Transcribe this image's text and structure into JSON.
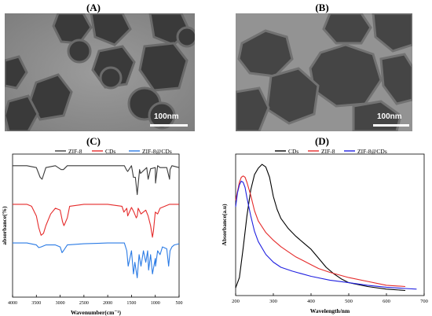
{
  "figure": {
    "panels": [
      {
        "letter": "(A)",
        "scale_label": "100nm"
      },
      {
        "letter": "(B)",
        "scale_label": "100nm"
      },
      {
        "letter": "(C)"
      },
      {
        "letter": "(D)"
      }
    ]
  },
  "chart_data": [
    {
      "type": "line",
      "panel": "(C)",
      "xlabel": "Wavenumber(cm⁻¹)",
      "ylabel": "absorbance(%)",
      "xlim": [
        4000,
        500
      ],
      "x_reversed": true,
      "x_ticks": [
        4000,
        3500,
        3000,
        2500,
        2000,
        1500,
        1000,
        500
      ],
      "y_ticks": false,
      "legend_position": "top",
      "series": [
        {
          "name": "ZIF-8",
          "color": "#3a3a3a",
          "offset": 2.0,
          "x": [
            4000,
            3700,
            3500,
            3420,
            3380,
            3300,
            3100,
            2980,
            2930,
            2850,
            2500,
            2000,
            1650,
            1600,
            1580,
            1500,
            1460,
            1420,
            1380,
            1330,
            1310,
            1180,
            1150,
            1100,
            1000,
            995,
            950,
            900,
            760,
            700,
            690,
            650,
            500
          ],
          "y": [
            0,
            0,
            -0.05,
            -0.3,
            -0.35,
            -0.05,
            0,
            -0.1,
            -0.1,
            0,
            0,
            0,
            0,
            -0.12,
            -0.15,
            0,
            -0.3,
            -0.3,
            -0.75,
            -0.1,
            -0.2,
            -0.05,
            -0.35,
            -0.08,
            -0.05,
            -0.45,
            0,
            -0.05,
            -0.05,
            -0.35,
            -0.1,
            0,
            -0.05
          ]
        },
        {
          "name": "CDs",
          "color": "#e52b2b",
          "offset": 1.0,
          "x": [
            4000,
            3700,
            3600,
            3500,
            3450,
            3400,
            3350,
            3300,
            3200,
            3100,
            3000,
            2950,
            2920,
            2900,
            2850,
            2800,
            2500,
            2000,
            1700,
            1660,
            1600,
            1580,
            1500,
            1450,
            1400,
            1380,
            1360,
            1300,
            1200,
            1150,
            1100,
            1060,
            1040,
            1000,
            950,
            900,
            800,
            700,
            600,
            500
          ],
          "y": [
            0,
            0,
            -0.05,
            -0.3,
            -0.6,
            -0.8,
            -0.75,
            -0.55,
            -0.25,
            -0.1,
            -0.15,
            -0.45,
            -0.55,
            -0.5,
            -0.35,
            -0.05,
            0,
            0,
            -0.05,
            -0.2,
            -0.1,
            -0.3,
            -0.08,
            -0.2,
            -0.35,
            -0.3,
            -0.1,
            -0.25,
            -0.15,
            -0.3,
            -0.55,
            -0.85,
            -0.7,
            -0.2,
            -0.25,
            -0.1,
            -0.05,
            0,
            0,
            0
          ]
        },
        {
          "name": "ZIF-8@CDs",
          "color": "#2b7be5",
          "offset": 0.0,
          "x": [
            4000,
            3700,
            3500,
            3450,
            3400,
            3300,
            3100,
            3000,
            2960,
            2930,
            2850,
            2500,
            2000,
            1650,
            1600,
            1570,
            1500,
            1460,
            1430,
            1380,
            1340,
            1300,
            1250,
            1200,
            1160,
            1140,
            1100,
            1060,
            1000,
            995,
            950,
            900,
            850,
            760,
            720,
            690,
            650,
            600,
            500
          ],
          "y": [
            0,
            0,
            -0.05,
            -0.12,
            -0.1,
            -0.05,
            -0.05,
            -0.1,
            -0.25,
            -0.2,
            -0.05,
            -0.02,
            0,
            0,
            -0.2,
            -0.6,
            -0.2,
            -0.8,
            -0.5,
            -0.9,
            -0.3,
            -0.6,
            -0.2,
            -0.5,
            -0.2,
            -0.7,
            -0.3,
            -0.8,
            -0.4,
            -0.6,
            -0.2,
            -0.3,
            -0.1,
            -0.15,
            -0.6,
            -0.2,
            -0.1,
            -0.05,
            -0.02
          ]
        }
      ]
    },
    {
      "type": "line",
      "panel": "(D)",
      "xlabel": "Wavelength/nm",
      "ylabel": "Absorbance(a.u)",
      "xlim": [
        200,
        700
      ],
      "x_ticks": [
        200,
        300,
        400,
        500,
        600,
        700
      ],
      "y_ticks": false,
      "legend_position": "top",
      "series": [
        {
          "name": "CDs",
          "color": "#000000",
          "x": [
            200,
            210,
            220,
            230,
            240,
            250,
            260,
            270,
            280,
            290,
            300,
            310,
            320,
            340,
            360,
            380,
            400,
            420,
            440,
            460,
            480,
            500,
            550,
            600,
            650
          ],
          "y": [
            0.04,
            0.12,
            0.35,
            0.6,
            0.8,
            0.92,
            0.97,
            1.0,
            0.98,
            0.9,
            0.75,
            0.65,
            0.58,
            0.5,
            0.44,
            0.39,
            0.34,
            0.27,
            0.2,
            0.15,
            0.11,
            0.08,
            0.05,
            0.03,
            0.02
          ]
        },
        {
          "name": "ZIF-8",
          "color": "#e52b2b",
          "x": [
            200,
            210,
            215,
            220,
            225,
            230,
            240,
            250,
            260,
            280,
            300,
            320,
            340,
            360,
            380,
            400,
            420,
            450,
            500,
            550,
            600,
            650
          ],
          "y": [
            0.72,
            0.86,
            0.9,
            0.91,
            0.9,
            0.86,
            0.76,
            0.64,
            0.56,
            0.47,
            0.41,
            0.36,
            0.32,
            0.28,
            0.25,
            0.22,
            0.19,
            0.16,
            0.12,
            0.09,
            0.06,
            0.05
          ]
        },
        {
          "name": "ZIF-8@CDs",
          "color": "#2020e0",
          "x": [
            200,
            205,
            210,
            215,
            220,
            225,
            230,
            240,
            250,
            260,
            280,
            300,
            320,
            350,
            400,
            450,
            500,
            550,
            600,
            650,
            680
          ],
          "y": [
            0.67,
            0.78,
            0.84,
            0.87,
            0.86,
            0.82,
            0.74,
            0.6,
            0.48,
            0.4,
            0.3,
            0.24,
            0.2,
            0.17,
            0.13,
            0.1,
            0.08,
            0.06,
            0.045,
            0.035,
            0.03
          ]
        }
      ]
    }
  ]
}
